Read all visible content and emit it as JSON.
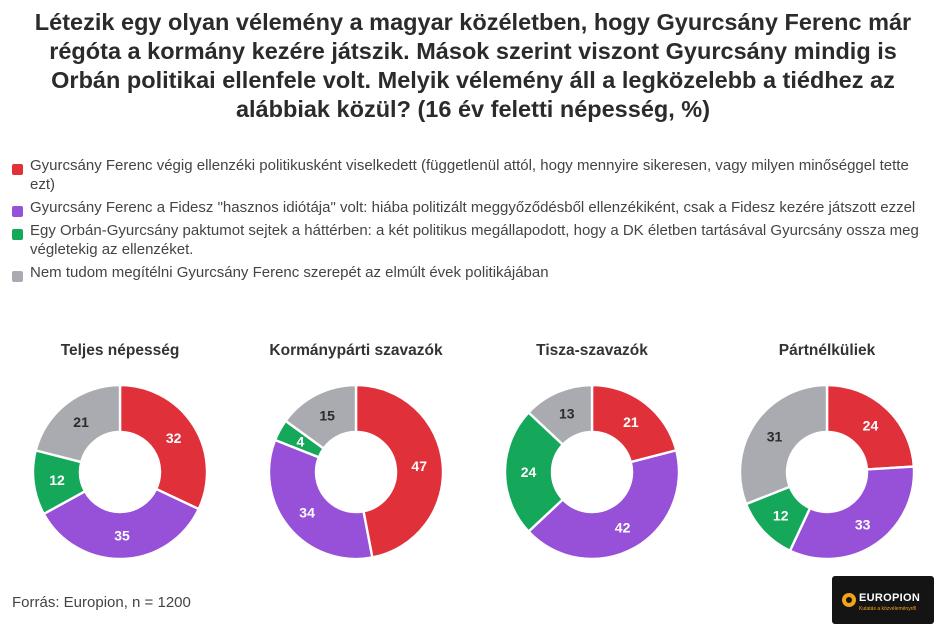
{
  "title": "Létezik egy olyan vélemény a magyar közéletben, hogy Gyurcsány Ferenc már régóta a kormány kezére játszik. Mások szerint viszont Gyurcsány mindig is Orbán politikai ellenfele volt. Melyik vélemény áll a legközelebb a tiédhez az alábbiak közül? (16 év feletti népesség, %)",
  "legend": [
    {
      "label": "Gyurcsány Ferenc végig ellenzéki politikusként viselkedett (függetlenül attól, hogy mennyire sikeresen, vagy milyen minőséggel tette ezt)",
      "color": "#e0303a"
    },
    {
      "label": "Gyurcsány Ferenc a Fidesz \"hasznos idiótája\" volt: hiába politizált meggyőződésből ellenzékiként, csak a Fidesz kezére játszott ezzel",
      "color": "#9651d8"
    },
    {
      "label": "Egy Orbán-Gyurcsány paktumot sejtek a háttérben: a két politikus megállapodott, hogy a DK életben tartásával Gyurcsány ossza meg végletekig az ellenzéket.",
      "color": "#15a85a"
    },
    {
      "label": "Nem tudom megítélni Gyurcsány Ferenc szerepét az elmúlt évek politikájában",
      "color": "#a9abb0"
    }
  ],
  "chart_data": [
    {
      "type": "pie",
      "title": "Teljes népesség",
      "values": [
        32,
        35,
        12,
        21
      ]
    },
    {
      "type": "pie",
      "title": "Kormánypárti szavazók",
      "values": [
        47,
        34,
        4,
        15
      ]
    },
    {
      "type": "pie",
      "title": "Tisza-szavazók",
      "values": [
        21,
        42,
        24,
        13
      ]
    },
    {
      "type": "pie",
      "title": "Pártnélküliek",
      "values": [
        24,
        33,
        12,
        31
      ]
    }
  ],
  "source": "Forrás: Europion, n = 1200",
  "logo": {
    "name": "EUROPION",
    "tagline": "Kutatás a közvéleményről"
  }
}
